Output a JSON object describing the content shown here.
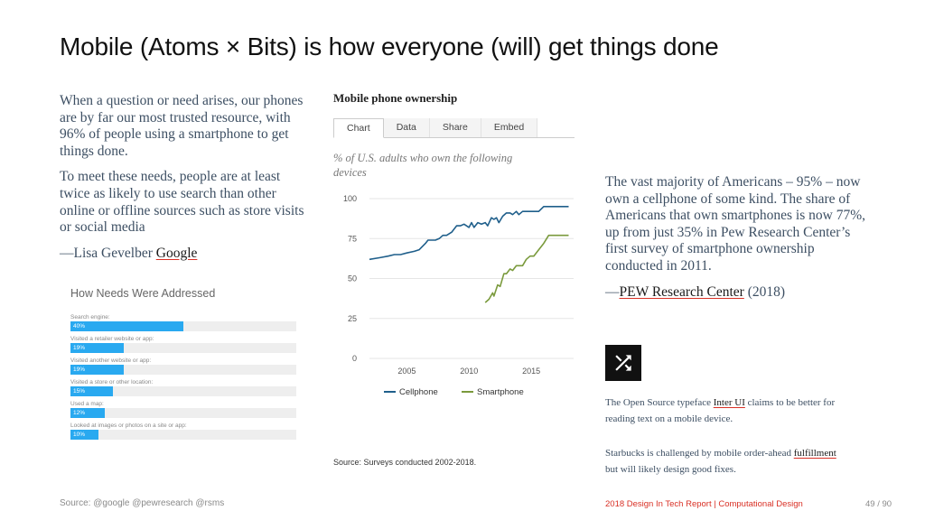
{
  "slide": {
    "title": "Mobile (Atoms × Bits) is how everyone (will) get things done"
  },
  "left": {
    "para1": "When a question or need arises, our phones are by far our most trusted resource, with 96% of people using a smartphone to get things done.",
    "para2": "To meet these needs, people are at least twice as likely to use search than other online or offline sources such as store visits or social media",
    "attrib_prefix": "—Lisa Gevelber ",
    "attrib_link": "Google"
  },
  "needs_chart": {
    "title": "How Needs Were Addressed",
    "bar_color": "#29a9f0",
    "items": [
      {
        "label": "Search engine:",
        "value": "40%",
        "fraction": 0.4
      },
      {
        "label": "Visited a retailer website or app:",
        "value": "19%",
        "fraction": 0.19
      },
      {
        "label": "Visited another website or app:",
        "value": "19%",
        "fraction": 0.19
      },
      {
        "label": "Visited a store or other location:",
        "value": "15%",
        "fraction": 0.15
      },
      {
        "label": "Used a map:",
        "value": "12%",
        "fraction": 0.12
      },
      {
        "label": "Looked at images or photos on a site or app:",
        "value": "10%",
        "fraction": 0.1
      }
    ]
  },
  "pew": {
    "title": "Mobile phone ownership",
    "tabs": [
      "Chart",
      "Data",
      "Share",
      "Embed"
    ],
    "active_tab": "Chart",
    "subtitle": "% of U.S. adults who own the following devices",
    "source": "Source: Surveys conducted 2002-2018."
  },
  "chart_data": {
    "type": "line",
    "title": "Mobile phone ownership",
    "subtitle": "% of U.S. adults who own the following devices",
    "xlabel": "",
    "ylabel": "",
    "xlim": [
      2002,
      2018.4
    ],
    "ylim": [
      0,
      100
    ],
    "x_ticks": [
      2005,
      2010,
      2015
    ],
    "y_ticks": [
      0,
      25,
      50,
      75,
      100
    ],
    "grid": true,
    "legend": "bottom",
    "series": [
      {
        "name": "Cellphone",
        "color": "#1f5f8b",
        "points": [
          [
            2002.0,
            62
          ],
          [
            2002.8,
            63
          ],
          [
            2003.5,
            64
          ],
          [
            2004.0,
            65
          ],
          [
            2004.5,
            65
          ],
          [
            2005.0,
            66
          ],
          [
            2005.6,
            67
          ],
          [
            2006.0,
            68
          ],
          [
            2006.5,
            72
          ],
          [
            2006.7,
            74
          ],
          [
            2007.3,
            74
          ],
          [
            2007.6,
            75
          ],
          [
            2007.9,
            77
          ],
          [
            2008.2,
            77
          ],
          [
            2008.6,
            79
          ],
          [
            2009.0,
            83
          ],
          [
            2009.3,
            83
          ],
          [
            2009.6,
            84
          ],
          [
            2010.0,
            82
          ],
          [
            2010.2,
            85
          ],
          [
            2010.4,
            82
          ],
          [
            2010.7,
            85
          ],
          [
            2011.0,
            84
          ],
          [
            2011.3,
            85
          ],
          [
            2011.5,
            83
          ],
          [
            2011.8,
            88
          ],
          [
            2012.0,
            87
          ],
          [
            2012.2,
            88
          ],
          [
            2012.4,
            85
          ],
          [
            2012.7,
            89
          ],
          [
            2013.0,
            91
          ],
          [
            2013.3,
            91
          ],
          [
            2013.5,
            90
          ],
          [
            2013.8,
            92
          ],
          [
            2014.0,
            90
          ],
          [
            2014.3,
            92
          ],
          [
            2014.6,
            92
          ],
          [
            2015.0,
            92
          ],
          [
            2015.3,
            92
          ],
          [
            2015.6,
            92
          ],
          [
            2016.0,
            95
          ],
          [
            2017.0,
            95
          ],
          [
            2018.0,
            95
          ]
        ]
      },
      {
        "name": "Smartphone",
        "color": "#7a9a3c",
        "points": [
          [
            2011.3,
            35
          ],
          [
            2011.6,
            37
          ],
          [
            2011.9,
            41
          ],
          [
            2012.0,
            39
          ],
          [
            2012.3,
            46
          ],
          [
            2012.5,
            45
          ],
          [
            2012.8,
            53
          ],
          [
            2013.0,
            53
          ],
          [
            2013.3,
            56
          ],
          [
            2013.5,
            55
          ],
          [
            2013.8,
            58
          ],
          [
            2014.0,
            58
          ],
          [
            2014.3,
            58
          ],
          [
            2014.6,
            62
          ],
          [
            2014.9,
            64
          ],
          [
            2015.2,
            64
          ],
          [
            2015.6,
            68
          ],
          [
            2016.0,
            72
          ],
          [
            2016.4,
            77
          ],
          [
            2017.0,
            77
          ],
          [
            2018.0,
            77
          ]
        ]
      }
    ]
  },
  "right": {
    "para": "The vast majority of Americans – 95% – now own a cellphone of some kind. The share of Americans that own smartphones is now 77%, up from just 35% in Pew Research Center’s first survey of smartphone ownership conducted in 2011.",
    "attrib_prefix": "—",
    "attrib_link": "PEW Research Center",
    "attrib_suffix": " (2018)"
  },
  "notes": {
    "note1_pre": "The Open Source typeface ",
    "note1_link": "Inter UI",
    "note1_post": " claims to be better for reading text on a mobile device.",
    "note2_pre": "Starbucks is challenged by mobile order-ahead ",
    "note2_link": "fulfillment",
    "note2_post": " but will likely design good fixes."
  },
  "footer": {
    "source": "Source: @google @pewresearch @rsms",
    "report": "2018 Design In Tech Report | Computational Design",
    "page": "49 / 90"
  }
}
